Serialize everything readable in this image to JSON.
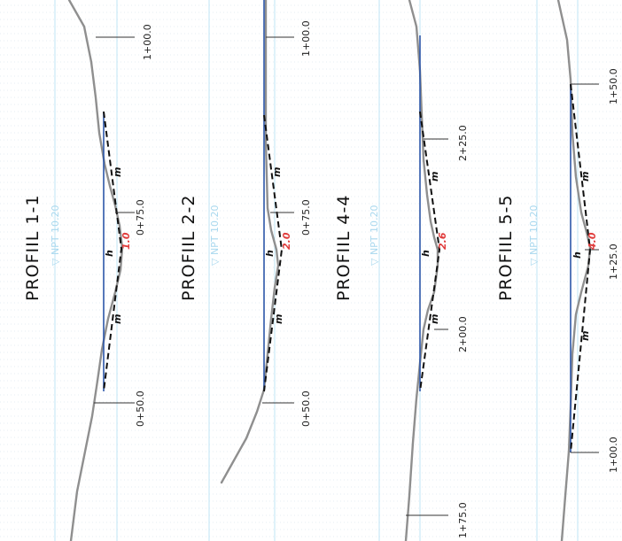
{
  "profiles": [
    {
      "title": "PROFIIL 1-1",
      "npt": "▽ NPT 10.20",
      "depth": "1.0",
      "stations": [
        "1+00.0",
        "0+75.0",
        "0+50.0"
      ],
      "slope_label": "m",
      "depth_label": "h"
    },
    {
      "title": "PROFIIL 2-2",
      "npt": "▽ NPT 10.20",
      "depth": "2.0",
      "stations": [
        "1+00.0",
        "0+75.0",
        "0+50.0"
      ],
      "slope_label": "m",
      "depth_label": "h"
    },
    {
      "title": "PROFIIL 4-4",
      "npt": "▽ NPT 10.20",
      "depth": "2.6",
      "stations": [
        "2+25.0",
        "2+00.0",
        "1+75.0"
      ],
      "slope_label": "m",
      "depth_label": "h"
    },
    {
      "title": "PROFIIL 5-5",
      "npt": "▽ NPT 10.20",
      "depth": "4.0",
      "stations": [
        "1+50.0",
        "1+25.0",
        "1+00.0"
      ],
      "slope_label": "m",
      "depth_label": "h"
    }
  ],
  "colors": {
    "terrain": "#8f8f8f",
    "water_line": "#2c56a8",
    "design_section": "#111111",
    "npt_level": "#a9d8ee",
    "depth_value": "#e03c3c"
  }
}
